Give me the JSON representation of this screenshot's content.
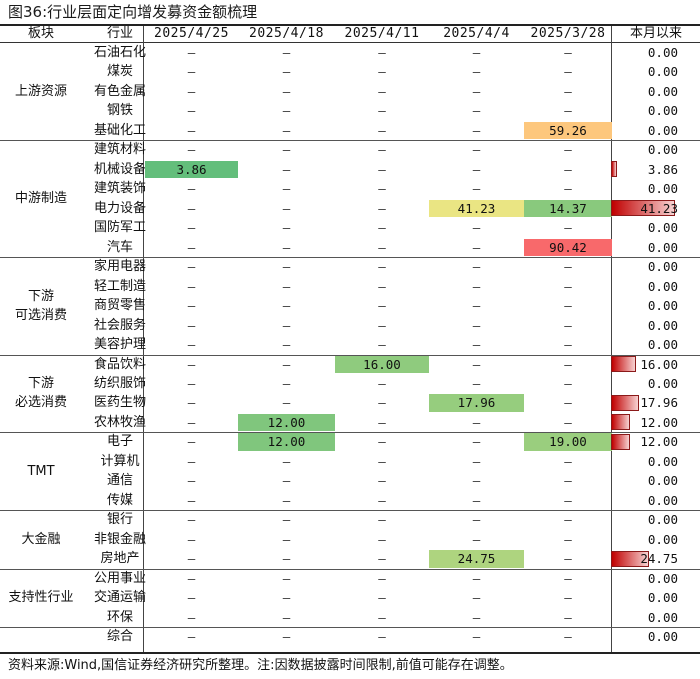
{
  "title": "图36:行业层面定向增发募资金额梳理",
  "headers": {
    "sector": "板块",
    "industry": "行业",
    "dates": [
      "2025/4/25",
      "2025/4/18",
      "2025/4/11",
      "2025/4/4",
      "2025/3/28"
    ],
    "month": "本月以来"
  },
  "dash": "–",
  "groups": [
    {
      "name": "上游资源",
      "rows": [
        {
          "industry": "石油石化",
          "values": [
            null,
            null,
            null,
            null,
            null
          ],
          "month": "0.00"
        },
        {
          "industry": "煤炭",
          "values": [
            null,
            null,
            null,
            null,
            null
          ],
          "month": "0.00"
        },
        {
          "industry": "有色金属",
          "values": [
            null,
            null,
            null,
            null,
            null
          ],
          "month": "0.00"
        },
        {
          "industry": "钢铁",
          "values": [
            null,
            null,
            null,
            null,
            null
          ],
          "month": "0.00"
        },
        {
          "industry": "基础化工",
          "values": [
            null,
            null,
            null,
            null,
            "59.26"
          ],
          "month": "0.00"
        }
      ]
    },
    {
      "name": "中游制造",
      "rows": [
        {
          "industry": "建筑材料",
          "values": [
            null,
            null,
            null,
            null,
            null
          ],
          "month": "0.00"
        },
        {
          "industry": "机械设备",
          "values": [
            "3.86",
            null,
            null,
            null,
            null
          ],
          "month": "3.86"
        },
        {
          "industry": "建筑装饰",
          "values": [
            null,
            null,
            null,
            null,
            null
          ],
          "month": "0.00"
        },
        {
          "industry": "电力设备",
          "values": [
            null,
            null,
            null,
            "41.23",
            "14.37"
          ],
          "month": "41.23"
        },
        {
          "industry": "国防军工",
          "values": [
            null,
            null,
            null,
            null,
            null
          ],
          "month": "0.00"
        },
        {
          "industry": "汽车",
          "values": [
            null,
            null,
            null,
            null,
            "90.42"
          ],
          "month": "0.00"
        }
      ]
    },
    {
      "name": "下游\n可选消费",
      "rows": [
        {
          "industry": "家用电器",
          "values": [
            null,
            null,
            null,
            null,
            null
          ],
          "month": "0.00"
        },
        {
          "industry": "轻工制造",
          "values": [
            null,
            null,
            null,
            null,
            null
          ],
          "month": "0.00"
        },
        {
          "industry": "商贸零售",
          "values": [
            null,
            null,
            null,
            null,
            null
          ],
          "month": "0.00"
        },
        {
          "industry": "社会服务",
          "values": [
            null,
            null,
            null,
            null,
            null
          ],
          "month": "0.00"
        },
        {
          "industry": "美容护理",
          "values": [
            null,
            null,
            null,
            null,
            null
          ],
          "month": "0.00"
        }
      ]
    },
    {
      "name": "下游\n必选消费",
      "rows": [
        {
          "industry": "食品饮料",
          "values": [
            null,
            null,
            "16.00",
            null,
            null
          ],
          "month": "16.00"
        },
        {
          "industry": "纺织服饰",
          "values": [
            null,
            null,
            null,
            null,
            null
          ],
          "month": "0.00"
        },
        {
          "industry": "医药生物",
          "values": [
            null,
            null,
            null,
            "17.96",
            null
          ],
          "month": "17.96"
        },
        {
          "industry": "农林牧渔",
          "values": [
            null,
            "12.00",
            null,
            null,
            null
          ],
          "month": "12.00"
        }
      ]
    },
    {
      "name": "TMT",
      "rows": [
        {
          "industry": "电子",
          "values": [
            null,
            "12.00",
            null,
            null,
            "19.00"
          ],
          "month": "12.00"
        },
        {
          "industry": "计算机",
          "values": [
            null,
            null,
            null,
            null,
            null
          ],
          "month": "0.00"
        },
        {
          "industry": "通信",
          "values": [
            null,
            null,
            null,
            null,
            null
          ],
          "month": "0.00"
        },
        {
          "industry": "传媒",
          "values": [
            null,
            null,
            null,
            null,
            null
          ],
          "month": "0.00"
        }
      ]
    },
    {
      "name": "大金融",
      "rows": [
        {
          "industry": "银行",
          "values": [
            null,
            null,
            null,
            null,
            null
          ],
          "month": "0.00"
        },
        {
          "industry": "非银金融",
          "values": [
            null,
            null,
            null,
            null,
            null
          ],
          "month": "0.00"
        },
        {
          "industry": "房地产",
          "values": [
            null,
            null,
            null,
            "24.75",
            null
          ],
          "month": "24.75"
        }
      ]
    },
    {
      "name": "支持性行业",
      "rows": [
        {
          "industry": "公用事业",
          "values": [
            null,
            null,
            null,
            null,
            null
          ],
          "month": "0.00"
        },
        {
          "industry": "交通运输",
          "values": [
            null,
            null,
            null,
            null,
            null
          ],
          "month": "0.00"
        },
        {
          "industry": "环保",
          "values": [
            null,
            null,
            null,
            null,
            null
          ],
          "month": "0.00"
        }
      ]
    },
    {
      "name": "",
      "rows": [
        {
          "industry": "综合",
          "values": [
            null,
            null,
            null,
            null,
            null
          ],
          "month": "0.00"
        }
      ]
    }
  ],
  "colors": {
    "heat_low": "#63be7b",
    "heat_mid": "#ffeb84",
    "heat_high": "#f8696b",
    "month_bar_light": "#f7d2d2",
    "month_bar_dark": "#c00000"
  },
  "source": "资料来源:Wind,国信证券经济研究所整理。注:因数据披露时间限制,前值可能存在调整。"
}
